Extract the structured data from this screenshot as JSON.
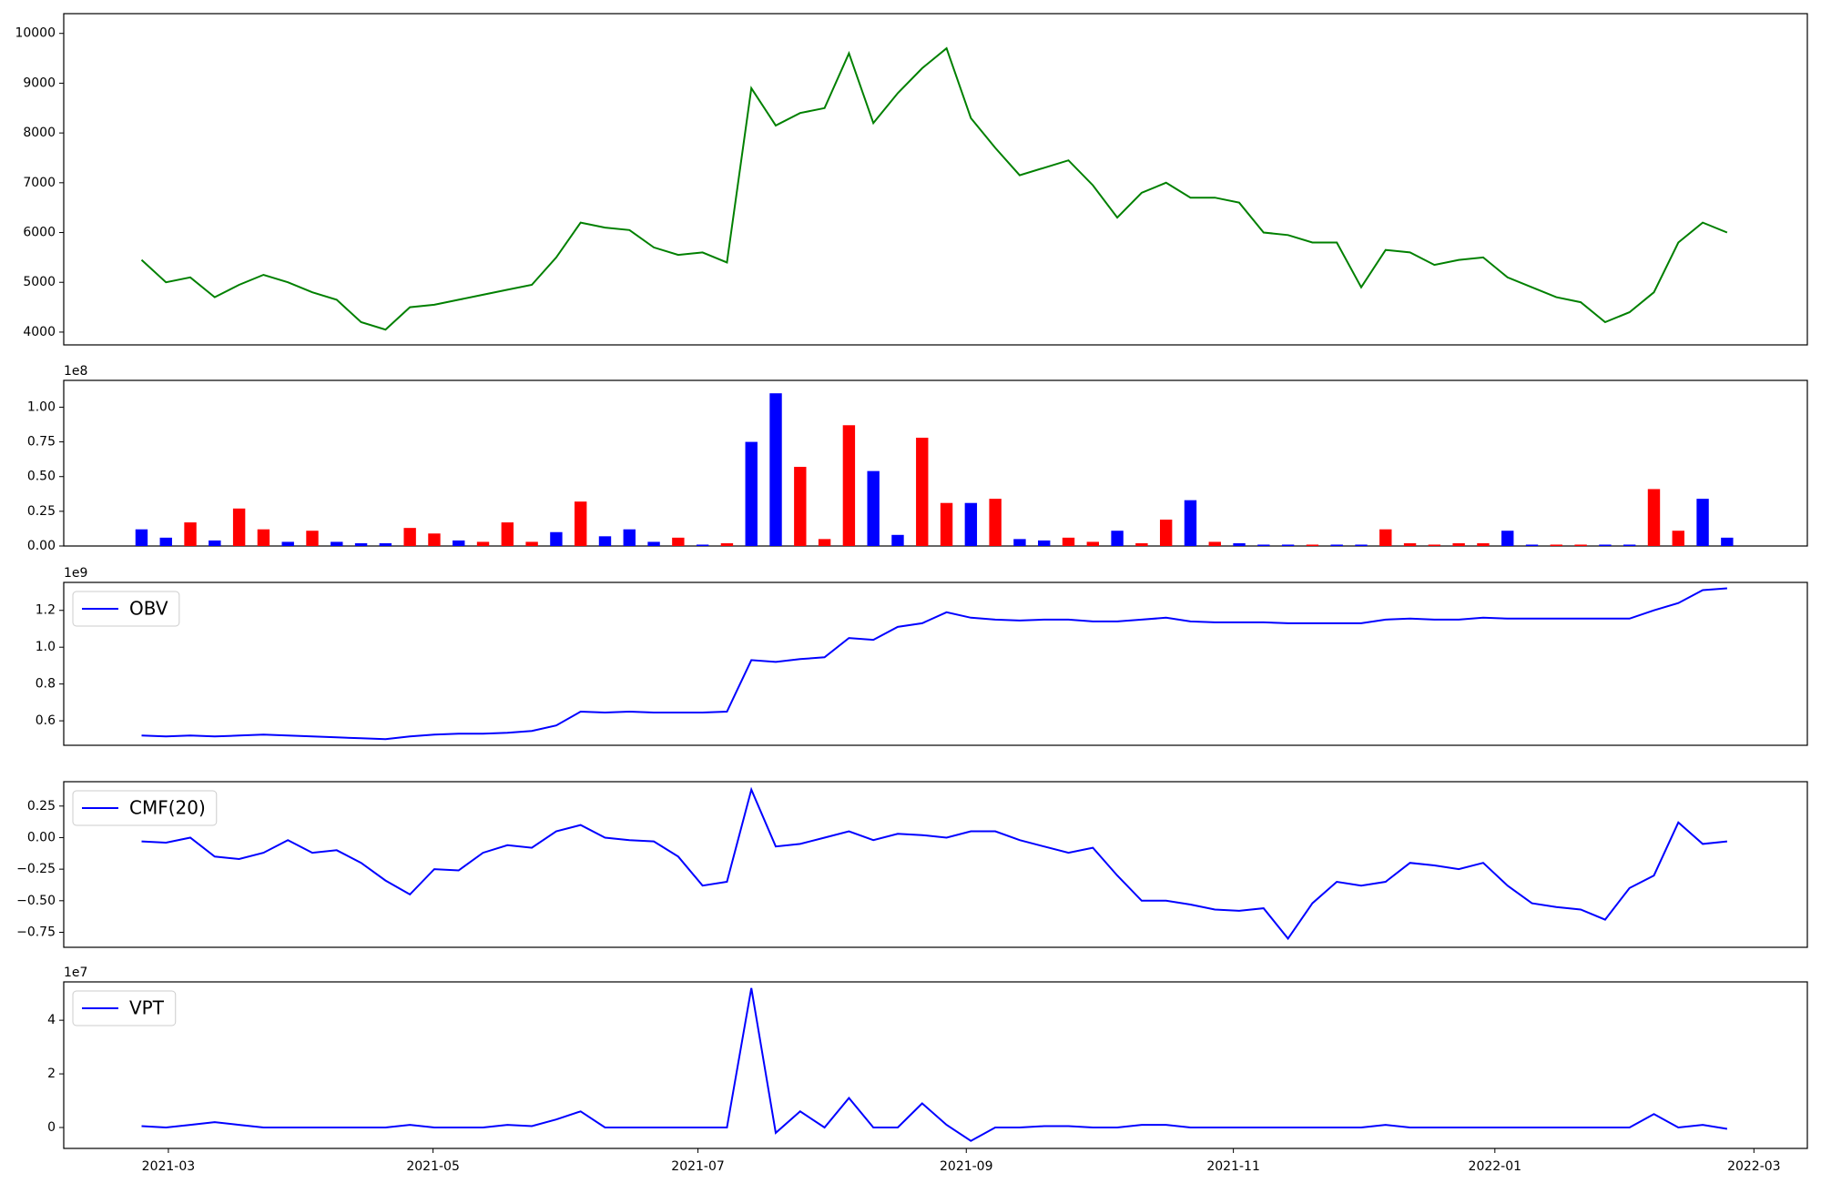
{
  "chart_data": [
    {
      "type": "line",
      "color": "#008000",
      "xlim": [
        -3.19,
        68.29
      ],
      "ylim": [
        3743,
        10397
      ],
      "yticks": [
        4000,
        5000,
        6000,
        7000,
        8000,
        9000,
        10000
      ],
      "values": [
        5450,
        5000,
        5100,
        4700,
        4950,
        5150,
        5000,
        4800,
        4650,
        4200,
        4050,
        4500,
        4550,
        4650,
        4750,
        4850,
        4950,
        5500,
        6200,
        6100,
        6050,
        5700,
        5550,
        5600,
        5400,
        8900,
        8150,
        8400,
        8500,
        9600,
        8200,
        8800,
        9300,
        9700,
        8300,
        7700,
        7150,
        7300,
        7450,
        6950,
        6300,
        6800,
        7000,
        6700,
        6700,
        6600,
        6000,
        5950,
        5800,
        5800,
        4900,
        5650,
        5600,
        5350,
        5450,
        5500,
        5100,
        4900,
        4700,
        4600,
        4200,
        4400,
        4800,
        5800,
        6200,
        6000
      ]
    },
    {
      "type": "bar",
      "xlim": [
        -3.19,
        68.29
      ],
      "ylim": [
        0,
        119300000
      ],
      "offset_label": "1e8",
      "yticks": [
        {
          "value": 0,
          "label": "0.00"
        },
        {
          "value": 25000000,
          "label": "0.25"
        },
        {
          "value": 50000000,
          "label": "0.50"
        },
        {
          "value": 75000000,
          "label": "0.75"
        },
        {
          "value": 100000000,
          "label": "1.00"
        }
      ],
      "values": [
        12000000,
        6000000,
        17000000,
        4000000,
        27000000,
        12000000,
        3000000,
        11000000,
        3000000,
        2000000,
        2000000,
        13000000,
        9000000,
        4000000,
        3000000,
        17000000,
        3000000,
        10000000,
        32000000,
        7000000,
        12000000,
        3000000,
        6000000,
        1000000,
        2000000,
        75000000,
        110000000,
        57000000,
        5000000,
        87000000,
        54000000,
        8000000,
        78000000,
        31000000,
        31000000,
        34000000,
        5000000,
        4000000,
        6000000,
        3000000,
        11000000,
        2000000,
        19000000,
        33000000,
        3000000,
        2000000,
        1000000,
        1000000,
        1000000,
        1000000,
        1000000,
        12000000,
        2000000,
        1000000,
        2000000,
        2000000,
        11000000,
        1000000,
        1000000,
        1000000,
        1000000,
        1000000,
        41000000,
        11000000,
        34000000,
        6000000
      ],
      "colors": [
        "blue",
        "blue",
        "red",
        "blue",
        "red",
        "red",
        "blue",
        "red",
        "blue",
        "blue",
        "blue",
        "red",
        "red",
        "blue",
        "red",
        "red",
        "red",
        "blue",
        "red",
        "blue",
        "blue",
        "blue",
        "red",
        "blue",
        "red",
        "blue",
        "blue",
        "red",
        "red",
        "red",
        "blue",
        "blue",
        "red",
        "red",
        "blue",
        "red",
        "blue",
        "blue",
        "red",
        "red",
        "blue",
        "red",
        "red",
        "blue",
        "red",
        "blue",
        "blue",
        "blue",
        "red",
        "blue",
        "blue",
        "red",
        "red",
        "red",
        "red",
        "red",
        "blue",
        "blue",
        "red",
        "red",
        "blue",
        "blue",
        "red",
        "red",
        "blue",
        "blue"
      ]
    },
    {
      "type": "line",
      "xlim": [
        -3.19,
        68.29
      ],
      "ylim": [
        467000000,
        1352000000
      ],
      "offset_label": "1e9",
      "legend": "upper left",
      "yticks": [
        {
          "value": 600000000,
          "label": "0.6"
        },
        {
          "value": 800000000,
          "label": "0.8"
        },
        {
          "value": 1000000000,
          "label": "1.0"
        },
        {
          "value": 1200000000,
          "label": "1.2"
        }
      ],
      "series": [
        {
          "name": "OBV",
          "color": "#0000ff",
          "values": [
            520000000,
            515000000,
            520000000,
            515000000,
            520000000,
            525000000,
            520000000,
            515000000,
            510000000,
            505000000,
            500000000,
            515000000,
            525000000,
            530000000,
            530000000,
            535000000,
            545000000,
            575000000,
            650000000,
            645000000,
            650000000,
            645000000,
            645000000,
            645000000,
            650000000,
            930000000,
            920000000,
            935000000,
            945000000,
            1050000000,
            1040000000,
            1110000000,
            1130000000,
            1190000000,
            1160000000,
            1150000000,
            1145000000,
            1150000000,
            1150000000,
            1140000000,
            1140000000,
            1150000000,
            1160000000,
            1140000000,
            1135000000,
            1135000000,
            1135000000,
            1130000000,
            1130000000,
            1130000000,
            1130000000,
            1150000000,
            1155000000,
            1150000000,
            1150000000,
            1160000000,
            1155000000,
            1155000000,
            1155000000,
            1155000000,
            1155000000,
            1155000000,
            1200000000,
            1240000000,
            1310000000,
            1320000000
          ]
        }
      ]
    },
    {
      "type": "line",
      "xlim": [
        -3.19,
        68.29
      ],
      "ylim": [
        -0.869,
        0.443
      ],
      "legend": "upper left",
      "yticks": [
        {
          "value": -0.75,
          "label": "−0.75"
        },
        {
          "value": -0.5,
          "label": "−0.50"
        },
        {
          "value": -0.25,
          "label": "−0.25"
        },
        {
          "value": 0,
          "label": "0.00"
        },
        0.25
      ],
      "series": [
        {
          "name": "CMF(20)",
          "color": "#0000ff",
          "values": [
            -0.03,
            -0.04,
            0.0,
            -0.15,
            -0.17,
            -0.12,
            -0.02,
            -0.12,
            -0.1,
            -0.2,
            -0.34,
            -0.45,
            -0.25,
            -0.26,
            -0.12,
            -0.06,
            -0.08,
            0.05,
            0.1,
            0.0,
            -0.02,
            -0.03,
            -0.15,
            -0.38,
            -0.35,
            0.38,
            -0.07,
            -0.05,
            0.0,
            0.05,
            -0.02,
            0.03,
            0.02,
            0.0,
            0.05,
            0.05,
            -0.02,
            -0.07,
            -0.12,
            -0.08,
            -0.3,
            -0.5,
            -0.5,
            -0.53,
            -0.57,
            -0.58,
            -0.56,
            -0.8,
            -0.52,
            -0.35,
            -0.38,
            -0.35,
            -0.2,
            -0.22,
            -0.25,
            -0.2,
            -0.38,
            -0.52,
            -0.55,
            -0.57,
            -0.65,
            -0.4,
            -0.3,
            0.12,
            -0.05,
            -0.03
          ]
        }
      ]
    },
    {
      "type": "line",
      "xlim": [
        -3.19,
        68.29
      ],
      "ylim": [
        -7800000,
        54300000
      ],
      "offset_label": "1e7",
      "legend": "upper left",
      "yticks": [
        0,
        {
          "value": 20000000,
          "label": "2"
        },
        {
          "value": 40000000,
          "label": "4"
        }
      ],
      "xticks": [
        {
          "value": 1.1,
          "label": "2021-03"
        },
        {
          "value": 11.95,
          "label": "2021-05"
        },
        {
          "value": 22.81,
          "label": "2021-07"
        },
        {
          "value": 33.81,
          "label": "2021-09"
        },
        {
          "value": 44.76,
          "label": "2021-11"
        },
        {
          "value": 55.48,
          "label": "2022-01"
        },
        {
          "value": 66.1,
          "label": "2022-03"
        }
      ],
      "series": [
        {
          "name": "VPT",
          "color": "#0000ff",
          "values": [
            500000,
            0,
            1000000,
            2000000,
            1000000,
            0,
            0,
            0,
            0,
            0,
            0,
            1000000,
            0,
            0,
            0,
            1000000,
            500000,
            3000000,
            6000000,
            0,
            0,
            0,
            0,
            0,
            0,
            52000000,
            -2000000,
            6000000,
            0,
            11000000,
            0,
            0,
            9000000,
            1000000,
            -5000000,
            0,
            0,
            500000,
            500000,
            0,
            0,
            1000000,
            1000000,
            0,
            0,
            0,
            0,
            0,
            0,
            0,
            0,
            1000000,
            0,
            0,
            0,
            0,
            0,
            0,
            0,
            0,
            0,
            0,
            5000000,
            0,
            1000000,
            -500000
          ]
        }
      ]
    }
  ]
}
